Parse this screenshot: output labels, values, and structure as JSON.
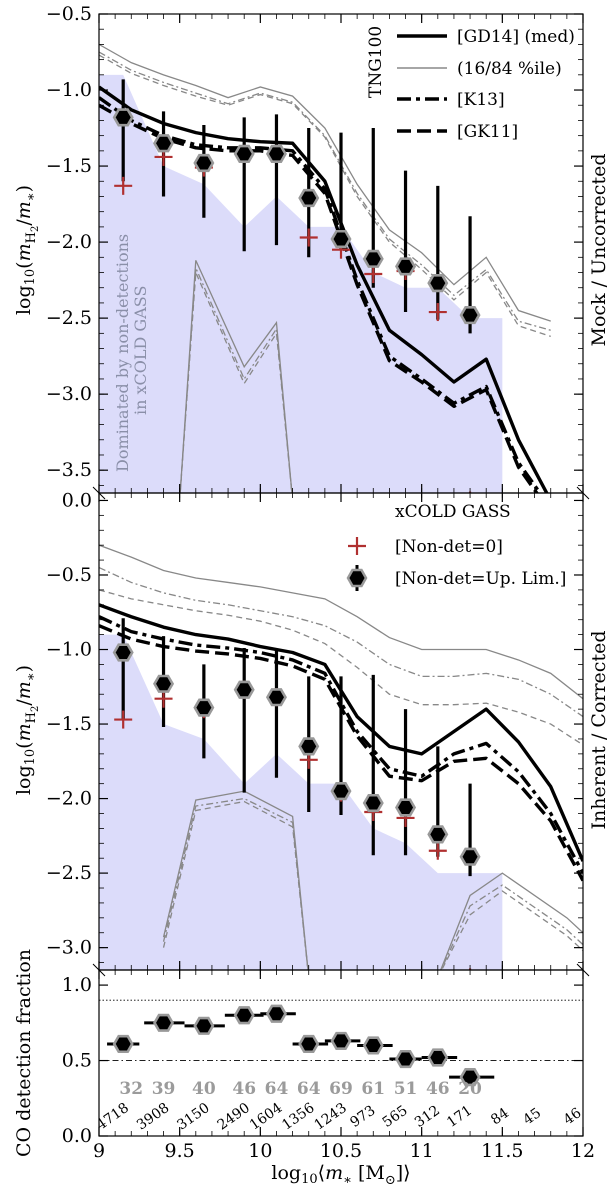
{
  "colors": {
    "shade": "#dcdcfa",
    "marker_fill": "#000000",
    "marker_edge": "#999999",
    "red": "#b03030",
    "thin": "#888888"
  },
  "chart_data": [
    {
      "type": "line",
      "panel": "top",
      "ylabel": "log10(mH2/m*)",
      "side_label": "Mock / Uncorrected",
      "ylim": [
        -3.65,
        -0.5
      ],
      "xlim": [
        9,
        12
      ],
      "yticks": [
        "−0.5",
        "−1.0",
        "−1.5",
        "−2.0",
        "−2.5",
        "−3.0",
        "−3.5"
      ],
      "ytick_values": [
        -0.5,
        -1.0,
        -1.5,
        -2.0,
        -2.5,
        -3.0,
        -3.5
      ],
      "legend_title": "TNG100",
      "legend": [
        "[GD14] (med)",
        "(16/84 %ile)",
        "[K13]",
        "[GK11]"
      ],
      "shade_note_line1": "Dominated by non-detections",
      "shade_note_line2": "in xCOLD GASS",
      "x": [
        9.0,
        9.2,
        9.4,
        9.6,
        9.8,
        10.0,
        10.2,
        10.4,
        10.6,
        10.8,
        11.0,
        11.2,
        11.4,
        11.6,
        11.8
      ],
      "series": [
        {
          "name": "[GD14] (med)",
          "style": "solid",
          "values": [
            -0.98,
            -1.13,
            -1.22,
            -1.28,
            -1.32,
            -1.34,
            -1.35,
            -1.6,
            -2.15,
            -2.58,
            -2.74,
            -2.92,
            -2.77,
            -3.3,
            -3.7
          ]
        },
        {
          "name": "[K13]",
          "style": "dashdot",
          "values": [
            -1.05,
            -1.2,
            -1.3,
            -1.36,
            -1.38,
            -1.38,
            -1.4,
            -1.65,
            -2.25,
            -2.75,
            -2.9,
            -3.06,
            -2.95,
            -3.45,
            -3.75
          ]
        },
        {
          "name": "[GK11]",
          "style": "dash",
          "values": [
            -1.1,
            -1.22,
            -1.32,
            -1.38,
            -1.4,
            -1.4,
            -1.43,
            -1.68,
            -2.28,
            -2.78,
            -2.92,
            -3.08,
            -2.97,
            -3.48,
            -3.78
          ]
        }
      ],
      "upper_band": [
        {
          "style": "solid",
          "values": [
            -0.7,
            -0.82,
            -0.9,
            -0.97,
            -1.05,
            -0.98,
            -1.04,
            -1.25,
            -1.62,
            -1.92,
            -2.07,
            -2.28,
            -2.1,
            -2.45,
            -2.52
          ]
        },
        {
          "style": "dashdot",
          "values": [
            -0.75,
            -0.87,
            -0.95,
            -1.02,
            -1.09,
            -1.02,
            -1.08,
            -1.3,
            -1.68,
            -1.98,
            -2.15,
            -2.35,
            -2.18,
            -2.52,
            -2.58
          ]
        },
        {
          "style": "dash",
          "values": [
            -0.77,
            -0.89,
            -0.97,
            -1.04,
            -1.1,
            -1.03,
            -1.09,
            -1.31,
            -1.7,
            -2.0,
            -2.18,
            -2.38,
            -2.2,
            -2.55,
            -2.62
          ]
        }
      ],
      "lower_band": [
        {
          "style": "solid",
          "x": [
            9.5,
            9.6,
            9.9,
            10.1,
            10.2
          ],
          "values": [
            -3.7,
            -2.12,
            -2.82,
            -2.53,
            -3.7
          ]
        },
        {
          "style": "dashdot",
          "x": [
            9.5,
            9.6,
            9.9,
            10.1,
            10.2
          ],
          "values": [
            -3.7,
            -2.17,
            -2.9,
            -2.57,
            -3.7
          ]
        },
        {
          "style": "dash",
          "x": [
            9.5,
            9.6,
            9.9,
            10.1,
            10.2
          ],
          "values": [
            -3.7,
            -2.2,
            -2.93,
            -2.6,
            -3.7
          ]
        }
      ],
      "obs_x": [
        9.15,
        9.4,
        9.65,
        9.9,
        10.1,
        10.3,
        10.5,
        10.7,
        10.9,
        11.1,
        11.3
      ],
      "obs_marker": [
        -1.18,
        -1.35,
        -1.48,
        -1.42,
        -1.42,
        -1.71,
        -1.98,
        -2.11,
        -2.16,
        -2.27,
        -2.48
      ],
      "obs_err_lo": [
        -1.6,
        -1.7,
        -1.84,
        -2.06,
        -2.02,
        -2.1,
        -2.05,
        -2.3,
        -2.46,
        -2.51,
        -2.6
      ],
      "obs_err_hi": [
        -0.93,
        -1.14,
        -1.23,
        -1.18,
        -1.16,
        -1.25,
        -1.28,
        -1.25,
        -1.53,
        -1.63,
        -1.83
      ],
      "obs_cross": [
        -1.63,
        -1.44,
        -1.51,
        -1.42,
        -1.42,
        -1.97,
        -2.05,
        -2.21,
        -2.19,
        -2.46,
        -3.7
      ],
      "shade_x": [
        9.0,
        9.15,
        9.4,
        9.65,
        9.9,
        10.1,
        10.3,
        10.5,
        10.7,
        10.9,
        11.1,
        11.3,
        11.5
      ],
      "shade_top": [
        -0.9,
        -0.9,
        -1.5,
        -1.62,
        -1.9,
        -1.7,
        -1.9,
        -1.9,
        -2.2,
        -2.3,
        -2.3,
        -2.5,
        -2.5
      ]
    },
    {
      "type": "line",
      "panel": "middle",
      "ylabel": "log10(mH2/m*)",
      "side_label": "Inherent / Corrected",
      "ylim": [
        -3.15,
        0.05
      ],
      "xlim": [
        9,
        12
      ],
      "yticks": [
        "0.0",
        "−0.5",
        "−1.0",
        "−1.5",
        "−2.0",
        "−2.5",
        "−3.0"
      ],
      "ytick_values": [
        0.0,
        -0.5,
        -1.0,
        -1.5,
        -2.0,
        -2.5,
        -3.0
      ],
      "legend_title": "xCOLD GASS",
      "legend": [
        "[Non-det=0]",
        "[Non-det=Up. Lim.]"
      ],
      "x": [
        9.0,
        9.2,
        9.4,
        9.6,
        9.8,
        10.0,
        10.2,
        10.4,
        10.6,
        10.8,
        11.0,
        11.2,
        11.4,
        11.6,
        11.8,
        12.0
      ],
      "series": [
        {
          "name": "[GD14] (med)",
          "style": "solid",
          "values": [
            -0.7,
            -0.78,
            -0.85,
            -0.9,
            -0.93,
            -0.98,
            -1.02,
            -1.1,
            -1.45,
            -1.65,
            -1.7,
            -1.55,
            -1.4,
            -1.62,
            -1.92,
            -2.42
          ]
        },
        {
          "name": "[K13]",
          "style": "dashdot",
          "values": [
            -0.78,
            -0.88,
            -0.93,
            -0.97,
            -0.99,
            -1.02,
            -1.07,
            -1.16,
            -1.55,
            -1.8,
            -1.85,
            -1.7,
            -1.63,
            -1.82,
            -2.1,
            -2.5
          ]
        },
        {
          "name": "[GK11]",
          "style": "dash",
          "values": [
            -0.84,
            -0.93,
            -0.98,
            -1.01,
            -1.03,
            -1.06,
            -1.11,
            -1.2,
            -1.58,
            -1.85,
            -1.88,
            -1.75,
            -1.73,
            -1.9,
            -2.15,
            -2.55
          ]
        }
      ],
      "upper_band": [
        {
          "style": "solid",
          "values": [
            -0.3,
            -0.38,
            -0.47,
            -0.52,
            -0.55,
            -0.58,
            -0.62,
            -0.66,
            -0.78,
            -0.92,
            -1.0,
            -1.0,
            -1.0,
            -1.07,
            -1.16,
            -1.33
          ]
        },
        {
          "style": "dashdot",
          "values": [
            -0.45,
            -0.55,
            -0.62,
            -0.67,
            -0.7,
            -0.74,
            -0.78,
            -0.84,
            -0.95,
            -1.1,
            -1.18,
            -1.18,
            -1.16,
            -1.2,
            -1.3,
            -1.45
          ]
        },
        {
          "style": "dash",
          "values": [
            -0.6,
            -0.66,
            -0.7,
            -0.74,
            -0.77,
            -0.81,
            -0.87,
            -0.96,
            -1.12,
            -1.3,
            -1.37,
            -1.37,
            -1.36,
            -1.42,
            -1.5,
            -1.64
          ]
        }
      ],
      "lower_band": [
        {
          "style": "solid",
          "x": [
            9.4,
            9.6,
            9.9,
            10.2,
            10.3
          ],
          "values": [
            -2.93,
            -2.01,
            -1.95,
            -2.12,
            -3.2
          ]
        },
        {
          "style": "dashdot",
          "x": [
            9.4,
            9.6,
            9.9,
            10.2,
            10.3
          ],
          "values": [
            -2.96,
            -2.05,
            -2.0,
            -2.16,
            -3.2
          ]
        },
        {
          "style": "dash",
          "x": [
            9.4,
            9.6,
            9.9,
            10.2,
            10.3
          ],
          "values": [
            -3.0,
            -2.08,
            -2.02,
            -2.19,
            -3.2
          ]
        },
        {
          "style": "solid",
          "x": [
            11.1,
            11.3,
            11.5,
            11.9,
            12.0
          ],
          "values": [
            -3.2,
            -2.65,
            -2.5,
            -2.8,
            -2.9
          ]
        },
        {
          "style": "dashdot",
          "x": [
            11.1,
            11.3,
            11.5,
            11.9,
            12.0
          ],
          "values": [
            -3.2,
            -2.72,
            -2.58,
            -2.88,
            -2.98
          ]
        },
        {
          "style": "dash",
          "x": [
            11.1,
            11.3,
            11.5,
            11.9,
            12.0
          ],
          "values": [
            -3.2,
            -2.78,
            -2.62,
            -2.92,
            -3.02
          ]
        }
      ],
      "obs_x": [
        9.15,
        9.4,
        9.65,
        9.9,
        10.1,
        10.3,
        10.5,
        10.7,
        10.9,
        11.1,
        11.3
      ],
      "obs_marker": [
        -1.02,
        -1.23,
        -1.39,
        -1.27,
        -1.32,
        -1.65,
        -1.95,
        -2.03,
        -2.06,
        -2.24,
        -2.39
      ],
      "obs_err_lo": [
        -1.47,
        -1.52,
        -1.73,
        -1.96,
        -1.86,
        -2.09,
        -2.11,
        -2.38,
        -2.38,
        -2.39,
        -2.52
      ],
      "obs_err_hi": [
        -0.79,
        -0.91,
        -1.1,
        -0.99,
        -1.0,
        -1.18,
        -1.18,
        -1.17,
        -1.4,
        -1.65,
        -1.9
      ],
      "obs_cross": [
        -1.47,
        -1.33,
        -1.4,
        -1.27,
        -1.32,
        -1.74,
        -1.96,
        -2.09,
        -2.13,
        -2.35,
        -3.2
      ],
      "shade_x": [
        9.0,
        9.15,
        9.4,
        9.65,
        9.9,
        10.1,
        10.3,
        10.5,
        10.7,
        10.9,
        11.1,
        11.3,
        11.5
      ],
      "shade_top": [
        -0.9,
        -0.9,
        -1.5,
        -1.6,
        -1.9,
        -1.7,
        -1.9,
        -1.9,
        -2.2,
        -2.3,
        -2.5,
        -2.5,
        -2.5
      ]
    },
    {
      "type": "scatter",
      "panel": "bottom",
      "ylabel": "CO detection fraction",
      "xlabel": "log10⟨m* [M⊙]⟩",
      "ylim": [
        0.0,
        1.1
      ],
      "xlim": [
        9,
        12
      ],
      "yticks": [
        "0.0",
        "0.5",
        "1.0"
      ],
      "ytick_values": [
        0.0,
        0.5,
        1.0
      ],
      "xticks": [
        "9",
        "9.5",
        "10",
        "10.5",
        "11",
        "11.5",
        "12"
      ],
      "xtick_values": [
        9,
        9.5,
        10,
        10.5,
        11,
        11.5,
        12
      ],
      "reference_lines": [
        {
          "y": 0.9,
          "style": "dotted"
        },
        {
          "y": 0.5,
          "style": "dashdot"
        }
      ],
      "x": [
        9.15,
        9.4,
        9.65,
        9.9,
        10.1,
        10.3,
        10.5,
        10.7,
        10.9,
        11.1,
        11.3
      ],
      "x_err_lo": [
        9.05,
        9.28,
        9.53,
        9.78,
        10.0,
        10.2,
        10.4,
        10.6,
        10.8,
        11.0,
        11.17
      ],
      "x_err_hi": [
        9.25,
        9.53,
        9.78,
        10.02,
        10.22,
        10.42,
        10.62,
        10.82,
        11.0,
        11.22,
        11.45
      ],
      "values": [
        0.61,
        0.75,
        0.73,
        0.8,
        0.81,
        0.61,
        0.63,
        0.6,
        0.51,
        0.52,
        0.39
      ],
      "gray_counts_x": [
        9.2,
        9.4,
        9.65,
        9.9,
        10.1,
        10.3,
        10.5,
        10.7,
        10.9,
        11.1,
        11.3
      ],
      "gray_counts": [
        "32",
        "39",
        "40",
        "46",
        "64",
        "64",
        "69",
        "61",
        "51",
        "46",
        "20"
      ],
      "sim_counts_x": [
        9.1,
        9.35,
        9.6,
        9.85,
        10.05,
        10.25,
        10.45,
        10.65,
        10.85,
        11.05,
        11.25,
        11.5,
        11.7,
        11.95
      ],
      "sim_counts": [
        "4718",
        "3908",
        "3150",
        "2490",
        "1604",
        "1356",
        "1243",
        "973",
        "565",
        "312",
        "171",
        "84",
        "45",
        "46"
      ]
    }
  ]
}
